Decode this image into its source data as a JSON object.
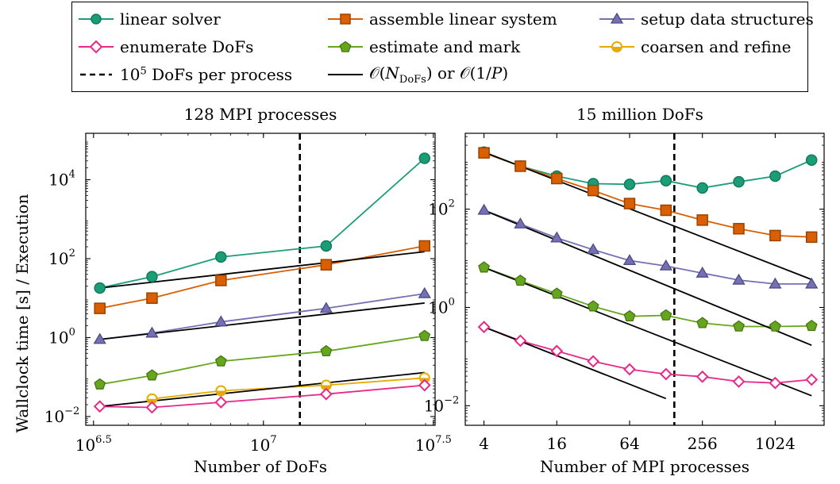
{
  "legend": {
    "items": [
      {
        "key": "linear_solver",
        "label": "linear solver"
      },
      {
        "key": "assemble",
        "label": "assemble linear system"
      },
      {
        "key": "setup",
        "label": "setup data structures"
      },
      {
        "key": "enumerate",
        "label": "enumerate DoFs"
      },
      {
        "key": "estimate",
        "label": "estimate and mark"
      },
      {
        "key": "coarsen",
        "label": "coarsen and refine"
      }
    ],
    "dofs_line": {
      "base": "10",
      "exp": "5",
      "rest": " DoFs per process"
    },
    "order_line": {
      "o1": "𝒪(",
      "n": "N",
      "sub": "DoFs",
      "o2": ") or ",
      "o3": "𝒪(1/",
      "p": "P",
      "o4": ")"
    }
  },
  "colors": {
    "linear_solver": "#1b9e77",
    "assemble": "#d95f02",
    "setup": "#7570b3",
    "enumerate": "#e7298a",
    "estimate": "#66a61e",
    "coarsen": "#e6ab02",
    "reference": "#000000"
  },
  "markers": {
    "linear_solver": "circle",
    "assemble": "square",
    "setup": "triangle",
    "enumerate": "diamond",
    "estimate": "pentagon",
    "coarsen": "half-circle"
  },
  "chart_data": [
    {
      "type": "line",
      "title": "128 MPI processes",
      "xlabel": "Number of DoFs",
      "ylabel": "Wallclock time [s] / Execution",
      "xscale": "log",
      "yscale": "log",
      "xlim": [
        3000000,
        32000000
      ],
      "ylim": [
        0.006,
        150000
      ],
      "x_ticks": [
        {
          "value": 3162278,
          "base": "10",
          "exp": "6.5"
        },
        {
          "value": 10000000,
          "base": "10",
          "exp": "7"
        },
        {
          "value": 31622777,
          "base": "10",
          "exp": "7.5"
        }
      ],
      "y_ticks": [
        {
          "value": 0.01,
          "base": "10",
          "exp": "−2"
        },
        {
          "value": 1,
          "base": "10",
          "exp": "0"
        },
        {
          "value": 100,
          "base": "10",
          "exp": "2"
        },
        {
          "value": 10000,
          "base": "10",
          "exp": "4"
        }
      ],
      "vline": 12800000,
      "series": [
        {
          "key": "linear_solver",
          "x": [
            3300000,
            4700000,
            7500000,
            15300000,
            29800000
          ],
          "y": [
            18,
            35,
            110,
            210,
            35000
          ]
        },
        {
          "key": "assemble",
          "x": [
            3300000,
            4700000,
            7500000,
            15300000,
            29800000
          ],
          "y": [
            5.5,
            10,
            28,
            70,
            210
          ]
        },
        {
          "key": "setup",
          "x": [
            3300000,
            4700000,
            7500000,
            15300000,
            29800000
          ],
          "y": [
            0.9,
            1.3,
            2.5,
            5.5,
            13
          ]
        },
        {
          "key": "estimate",
          "x": [
            3300000,
            4700000,
            7500000,
            15300000,
            29800000
          ],
          "y": [
            0.065,
            0.11,
            0.25,
            0.45,
            1.1
          ]
        },
        {
          "key": "coarsen",
          "x": [
            4700000,
            7500000,
            15300000,
            29800000
          ],
          "y": [
            0.028,
            0.045,
            0.062,
            0.095
          ]
        },
        {
          "key": "enumerate",
          "x": [
            3300000,
            4700000,
            7500000,
            15300000,
            29800000
          ],
          "y": [
            0.018,
            0.017,
            0.023,
            0.037,
            0.062
          ]
        }
      ],
      "reference_lines": [
        {
          "x": [
            3300000,
            29800000
          ],
          "y": [
            18,
            150
          ]
        },
        {
          "x": [
            3300000,
            29800000
          ],
          "y": [
            0.9,
            7.5
          ]
        },
        {
          "x": [
            3300000,
            29800000
          ],
          "y": [
            0.018,
            0.13
          ]
        }
      ]
    },
    {
      "type": "line",
      "title": "15 million DoFs",
      "xlabel": "Number of MPI processes",
      "xscale": "log2",
      "yscale": "log",
      "xlim": [
        2.8,
        2600
      ],
      "ylim": [
        0.004,
        3500
      ],
      "x_ticks": [
        {
          "value": 4,
          "label": "4"
        },
        {
          "value": 16,
          "label": "16"
        },
        {
          "value": 64,
          "label": "64"
        },
        {
          "value": 256,
          "label": "256"
        },
        {
          "value": 1024,
          "label": "1024"
        }
      ],
      "y_ticks": [
        {
          "value": 0.01,
          "base": "10",
          "exp": "−2"
        },
        {
          "value": 1,
          "base": "10",
          "exp": "0"
        },
        {
          "value": 100,
          "base": "10",
          "exp": "2"
        }
      ],
      "vline": 150,
      "series": [
        {
          "key": "linear_solver",
          "x": [
            4,
            8,
            16,
            32,
            64,
            128,
            256,
            512,
            1024,
            2048
          ],
          "y": [
            1450,
            750,
            470,
            330,
            320,
            380,
            270,
            360,
            470,
            1000
          ]
        },
        {
          "key": "assemble",
          "x": [
            4,
            8,
            16,
            32,
            64,
            128,
            256,
            512,
            1024,
            2048
          ],
          "y": [
            1400,
            750,
            420,
            240,
            130,
            95,
            60,
            40,
            29,
            27
          ]
        },
        {
          "key": "setup",
          "x": [
            4,
            8,
            16,
            32,
            64,
            128,
            256,
            512,
            1024,
            2048
          ],
          "y": [
            95,
            50,
            26,
            15,
            9,
            7,
            5,
            3.6,
            3,
            3
          ]
        },
        {
          "key": "estimate",
          "x": [
            4,
            8,
            16,
            32,
            64,
            128,
            256,
            512,
            1024,
            2048
          ],
          "y": [
            6.5,
            3.5,
            1.9,
            1.05,
            0.66,
            0.69,
            0.48,
            0.41,
            0.41,
            0.42
          ]
        },
        {
          "key": "enumerate",
          "x": [
            4,
            8,
            16,
            32,
            64,
            128,
            256,
            512,
            1024,
            2048
          ],
          "y": [
            0.4,
            0.21,
            0.13,
            0.08,
            0.055,
            0.044,
            0.039,
            0.031,
            0.029,
            0.034
          ]
        }
      ],
      "reference_lines": [
        {
          "x": [
            4,
            2048
          ],
          "y": [
            1450,
            3.7
          ]
        },
        {
          "x": [
            4,
            2048
          ],
          "y": [
            95,
            0.17
          ]
        },
        {
          "x": [
            4,
            2048
          ],
          "y": [
            6.5,
            0.016
          ]
        },
        {
          "x": [
            4,
            128
          ],
          "y": [
            0.4,
            0.014
          ]
        }
      ]
    }
  ]
}
